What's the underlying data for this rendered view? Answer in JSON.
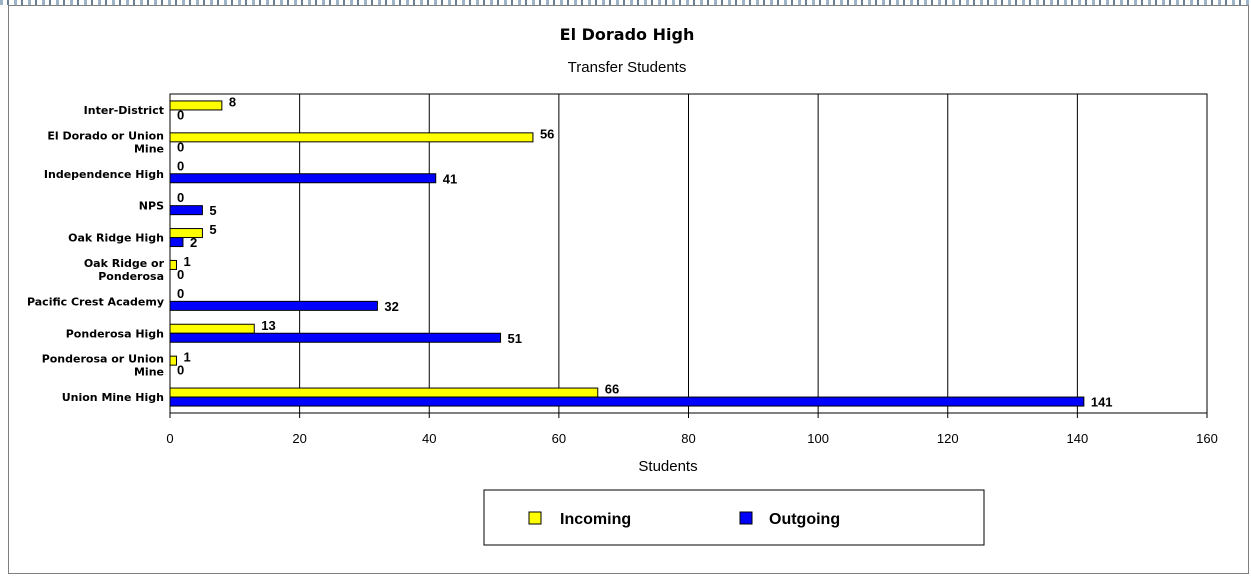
{
  "chart_data": {
    "type": "bar",
    "orientation": "horizontal",
    "title": "El Dorado High",
    "subtitle": "Transfer Students",
    "xlabel": "Students",
    "ylabel": "",
    "xlim": [
      0,
      160
    ],
    "xticks": [
      0,
      20,
      40,
      60,
      80,
      100,
      120,
      140,
      160
    ],
    "grid": true,
    "legend_position": "bottom",
    "categories": [
      [
        "Inter-District"
      ],
      [
        "El Dorado or Union",
        "Mine"
      ],
      [
        "Independence High"
      ],
      [
        "NPS"
      ],
      [
        "Oak Ridge High"
      ],
      [
        "Oak Ridge or",
        "Ponderosa"
      ],
      [
        "Pacific Crest Academy"
      ],
      [
        "Ponderosa High"
      ],
      [
        "Ponderosa or Union",
        "Mine"
      ],
      [
        "Union Mine High"
      ]
    ],
    "series": [
      {
        "name": "Incoming",
        "color": "#ffff00",
        "values": [
          8,
          56,
          0,
          0,
          5,
          1,
          0,
          13,
          1,
          66
        ]
      },
      {
        "name": "Outgoing",
        "color": "#0000ff",
        "values": [
          0,
          0,
          41,
          5,
          2,
          0,
          32,
          51,
          0,
          141
        ]
      }
    ]
  }
}
